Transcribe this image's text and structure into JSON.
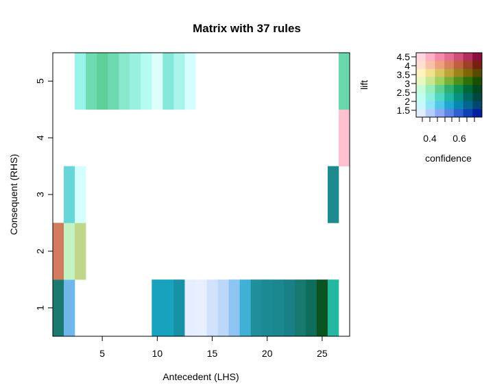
{
  "chart_data": {
    "type": "heatmap",
    "title": "Matrix with 37 rules",
    "xlabel": "Antecedent (LHS)",
    "ylabel": "Consequent (RHS)",
    "xlim": [
      0.5,
      27.5
    ],
    "ylim": [
      0.5,
      5.5
    ],
    "x_ticks": [
      5,
      10,
      15,
      20,
      25
    ],
    "y_ticks": [
      1,
      2,
      3,
      4,
      5
    ],
    "cells": [
      {
        "x": 1,
        "y": 1,
        "color": "#1a7a70"
      },
      {
        "x": 1,
        "y": 2,
        "color": "#d27a5e"
      },
      {
        "x": 2,
        "y": 1,
        "color": "#6fb6ea"
      },
      {
        "x": 2,
        "y": 2,
        "color": "#c4f3c2"
      },
      {
        "x": 2,
        "y": 3,
        "color": "#67d6d8"
      },
      {
        "x": 3,
        "y": 2,
        "color": "#c0d68a"
      },
      {
        "x": 3,
        "y": 3,
        "color": "#d4feff"
      },
      {
        "x": 3,
        "y": 5,
        "color": "#96f4e8"
      },
      {
        "x": 4,
        "y": 5,
        "color": "#6edcb0"
      },
      {
        "x": 5,
        "y": 5,
        "color": "#5ed09a"
      },
      {
        "x": 6,
        "y": 5,
        "color": "#6ed8ae"
      },
      {
        "x": 7,
        "y": 5,
        "color": "#87e8cc"
      },
      {
        "x": 8,
        "y": 5,
        "color": "#98f0de"
      },
      {
        "x": 9,
        "y": 5,
        "color": "#b4fcf2"
      },
      {
        "x": 10,
        "y": 1,
        "color": "#17a3be"
      },
      {
        "x": 10,
        "y": 5,
        "color": "#dcfffb"
      },
      {
        "x": 11,
        "y": 1,
        "color": "#17a3be"
      },
      {
        "x": 11,
        "y": 5,
        "color": "#84e8d8"
      },
      {
        "x": 12,
        "y": 1,
        "color": "#1890a6"
      },
      {
        "x": 12,
        "y": 5,
        "color": "#a8f4ea"
      },
      {
        "x": 13,
        "y": 1,
        "color": "#e4eefe"
      },
      {
        "x": 13,
        "y": 5,
        "color": "#d4feff"
      },
      {
        "x": 14,
        "y": 1,
        "color": "#e8f0ff"
      },
      {
        "x": 15,
        "y": 1,
        "color": "#d0e2fc"
      },
      {
        "x": 16,
        "y": 1,
        "color": "#bcd7fa"
      },
      {
        "x": 17,
        "y": 1,
        "color": "#8ec4f4"
      },
      {
        "x": 18,
        "y": 1,
        "color": "#40b0d6"
      },
      {
        "x": 19,
        "y": 1,
        "color": "#1f8f9c"
      },
      {
        "x": 20,
        "y": 1,
        "color": "#1b8a92"
      },
      {
        "x": 21,
        "y": 1,
        "color": "#1b8890"
      },
      {
        "x": 22,
        "y": 1,
        "color": "#1a8088"
      },
      {
        "x": 23,
        "y": 1,
        "color": "#167a70"
      },
      {
        "x": 24,
        "y": 1,
        "color": "#0f6d5c"
      },
      {
        "x": 25,
        "y": 1,
        "color": "#0c5322"
      },
      {
        "x": 26,
        "y": 1,
        "color": "#22b8a2"
      },
      {
        "x": 26,
        "y": 3,
        "color": "#1c8a8e"
      },
      {
        "x": 27,
        "y": 4,
        "color": "#ffc0d0"
      },
      {
        "x": 27,
        "y": 5,
        "color": "#6ad8aa"
      }
    ],
    "legend": {
      "xlabel": "confidence",
      "ylabel": "lift",
      "x_ticks": [
        "0.4",
        "0.6"
      ],
      "y_ticks": [
        "1.5",
        "2",
        "2.5",
        "3",
        "3.5",
        "4",
        "4.5"
      ],
      "grid_colors": [
        [
          "#ffd6e0",
          "#ffb0c8",
          "#f58aaa",
          "#e66d90",
          "#cf4f78",
          "#b22e5c",
          "#8a0f3c"
        ],
        [
          "#ffe0d0",
          "#f8c0a8",
          "#eca080",
          "#d88060",
          "#c06040",
          "#9c4028",
          "#782010"
        ],
        [
          "#fff4c0",
          "#f0e090",
          "#d8c460",
          "#bca438",
          "#9c841c",
          "#7c6608",
          "#5a4a00"
        ],
        [
          "#e8f8c0",
          "#c8e890",
          "#a0d060",
          "#78b038",
          "#50901c",
          "#307008",
          "#1a5000"
        ],
        [
          "#c8fcd8",
          "#98ecb8",
          "#60d090",
          "#30b070",
          "#109050",
          "#006838",
          "#004820"
        ],
        [
          "#c0fff0",
          "#8cf0dc",
          "#50d8c0",
          "#20b8a0",
          "#089080",
          "#006860",
          "#004840"
        ],
        [
          "#c8f8ff",
          "#90e4f8",
          "#50c8e8",
          "#20a8d0",
          "#0888b0",
          "#006890",
          "#004870"
        ],
        [
          "#e0ecff",
          "#b8ccfc",
          "#8ca8f4",
          "#5c84e4",
          "#3060d0",
          "#1040b8",
          "#0020a0"
        ]
      ]
    }
  }
}
